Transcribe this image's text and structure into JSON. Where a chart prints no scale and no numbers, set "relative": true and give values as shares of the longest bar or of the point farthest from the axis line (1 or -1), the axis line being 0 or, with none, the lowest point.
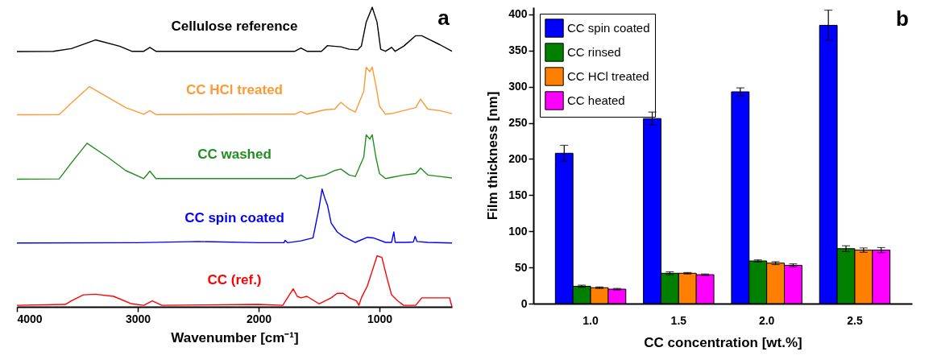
{
  "chart_data": [
    {
      "type": "line",
      "relative": true,
      "xlabel": "Wavenumber [cm⁻¹]",
      "xlim": [
        4000,
        400
      ],
      "xticks": [
        4000,
        3000,
        2000,
        1000
      ],
      "grid": false,
      "legend": false,
      "annotations": [
        "a"
      ],
      "series": [
        {
          "name": "Cellulose reference",
          "color": "#000000",
          "x": [
            4000,
            3700,
            3550,
            3350,
            3150,
            3050,
            2950,
            2900,
            2850,
            2000,
            1700,
            1650,
            1600,
            1480,
            1430,
            1380,
            1320,
            1250,
            1180,
            1150,
            1110,
            1060,
            1020,
            990,
            950,
            900,
            870,
            800,
            700,
            650,
            600,
            500,
            400
          ],
          "values": [
            0.852,
            0.853,
            0.862,
            0.891,
            0.87,
            0.853,
            0.853,
            0.866,
            0.853,
            0.853,
            0.853,
            0.864,
            0.853,
            0.853,
            0.872,
            0.87,
            0.868,
            0.86,
            0.858,
            0.87,
            0.95,
            1.0,
            0.95,
            0.86,
            0.853,
            0.866,
            0.853,
            0.87,
            0.905,
            0.905,
            0.895,
            0.875,
            0.853
          ]
        },
        {
          "name": "CC HCl treated",
          "color": "#ff9933",
          "x": [
            4000,
            3650,
            3550,
            3400,
            3250,
            3100,
            2950,
            2900,
            2850,
            2000,
            1700,
            1650,
            1600,
            1450,
            1370,
            1320,
            1250,
            1200,
            1130,
            1110,
            1080,
            1060,
            1030,
            1000,
            950,
            900,
            800,
            700,
            660,
            600,
            500,
            400
          ],
          "values": [
            0.641,
            0.642,
            0.68,
            0.735,
            0.7,
            0.665,
            0.643,
            0.655,
            0.642,
            0.643,
            0.643,
            0.652,
            0.643,
            0.658,
            0.66,
            0.683,
            0.66,
            0.65,
            0.72,
            0.8,
            0.785,
            0.8,
            0.74,
            0.67,
            0.643,
            0.645,
            0.655,
            0.665,
            0.693,
            0.66,
            0.655,
            0.645
          ]
        },
        {
          "name": "CC washed",
          "color": "#1f8f1f",
          "x": [
            4000,
            3650,
            3550,
            3420,
            3250,
            3100,
            2950,
            2900,
            2850,
            2000,
            1700,
            1650,
            1600,
            1450,
            1370,
            1320,
            1250,
            1200,
            1130,
            1110,
            1080,
            1060,
            1030,
            1000,
            950,
            900,
            800,
            700,
            660,
            600,
            500,
            400
          ],
          "values": [
            0.426,
            0.427,
            0.48,
            0.546,
            0.5,
            0.455,
            0.428,
            0.453,
            0.428,
            0.428,
            0.428,
            0.44,
            0.428,
            0.44,
            0.455,
            0.46,
            0.44,
            0.435,
            0.5,
            0.574,
            0.56,
            0.574,
            0.5,
            0.445,
            0.428,
            0.432,
            0.44,
            0.445,
            0.463,
            0.44,
            0.435,
            0.43
          ]
        },
        {
          "name": "CC spin coated",
          "color": "#0000ff",
          "x": [
            4000,
            3000,
            2500,
            2000,
            1790,
            1780,
            1760,
            1650,
            1550,
            1500,
            1475,
            1450,
            1430,
            1400,
            1350,
            1300,
            1200,
            1100,
            1050,
            950,
            900,
            881,
            870,
            800,
            720,
            705,
            690,
            600,
            400
          ],
          "values": [
            0.213,
            0.214,
            0.218,
            0.214,
            0.214,
            0.222,
            0.214,
            0.22,
            0.23,
            0.33,
            0.393,
            0.36,
            0.339,
            0.28,
            0.25,
            0.235,
            0.215,
            0.232,
            0.23,
            0.215,
            0.215,
            0.25,
            0.215,
            0.215,
            0.216,
            0.235,
            0.218,
            0.215,
            0.213
          ]
        },
        {
          "name": "CC (ref.)",
          "color": "#ff0000",
          "x": [
            4000,
            3600,
            3550,
            3450,
            3350,
            3200,
            3050,
            2950,
            2880,
            2800,
            2000,
            1800,
            1714,
            1680,
            1650,
            1600,
            1500,
            1400,
            1350,
            1300,
            1250,
            1190,
            1170,
            1150,
            1100,
            1060,
            1020,
            980,
            940,
            900,
            850,
            800,
            700,
            650,
            600,
            500,
            420,
            400
          ],
          "values": [
            0.005,
            0.008,
            0.02,
            0.04,
            0.042,
            0.035,
            0.01,
            0.005,
            0.02,
            0.005,
            0.008,
            0.005,
            0.06,
            0.035,
            0.03,
            0.035,
            0.01,
            0.03,
            0.045,
            0.045,
            0.03,
            0.02,
            0.005,
            0.03,
            0.07,
            0.12,
            0.17,
            0.165,
            0.1,
            0.04,
            0.02,
            0.005,
            0.005,
            0.03,
            0.03,
            0.03,
            0.03,
            0
          ]
        }
      ]
    },
    {
      "type": "bar",
      "xlabel": "CC concentration [wt.%]",
      "ylabel": "Film thickness [nm]",
      "categories": [
        "1.0",
        "1.5",
        "2.0",
        "2.5"
      ],
      "ylim": [
        0,
        410
      ],
      "yticks": [
        0,
        50,
        100,
        150,
        200,
        250,
        300,
        350,
        400
      ],
      "grid": false,
      "legend": "top left",
      "annotations": [
        "b"
      ],
      "series": [
        {
          "name": "CC spin coated",
          "color": "#0000ff",
          "values": [
            208,
            256,
            293,
            385
          ],
          "errors": [
            11,
            9,
            5.5,
            21
          ]
        },
        {
          "name": "CC rinsed",
          "color": "#007f00",
          "values": [
            24,
            42,
            59,
            76
          ],
          "errors": [
            1.5,
            2,
            1.5,
            4
          ]
        },
        {
          "name": "CC HCl treated",
          "color": "#ff7f00",
          "values": [
            22,
            42,
            56,
            74
          ],
          "errors": [
            1,
            1,
            2,
            3
          ]
        },
        {
          "name": "CC heated",
          "color": "#ff00ff",
          "values": [
            20,
            40,
            53,
            74
          ],
          "errors": [
            1,
            1,
            2,
            3.5
          ]
        }
      ]
    }
  ]
}
